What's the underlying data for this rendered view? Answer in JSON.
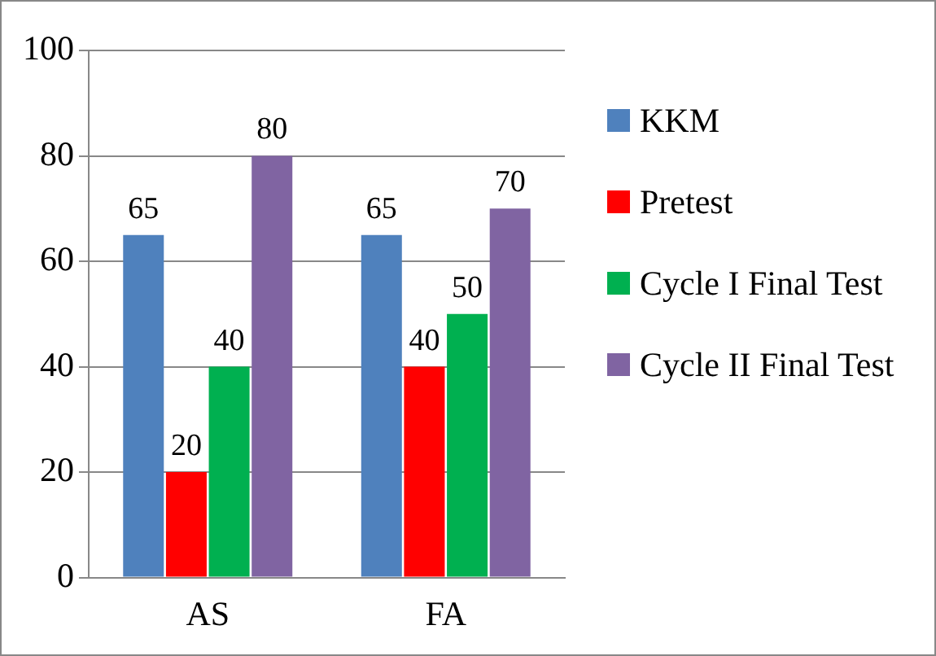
{
  "chart_data": {
    "type": "bar",
    "categories": [
      "AS",
      "FA"
    ],
    "series": [
      {
        "name": "KKM",
        "color": "#4f81bd",
        "values": [
          65,
          65
        ]
      },
      {
        "name": "Pretest",
        "color": "#ff0000",
        "values": [
          20,
          40
        ]
      },
      {
        "name": "Cycle I Final Test",
        "color": "#00b050",
        "values": [
          40,
          50
        ]
      },
      {
        "name": "Cycle II Final Test",
        "color": "#8064a2",
        "values": [
          80,
          70
        ]
      }
    ],
    "ylim": [
      0,
      100
    ],
    "yticks": [
      0,
      20,
      40,
      60,
      80,
      100
    ],
    "grid": "y",
    "legend": "right",
    "data_labels": true
  }
}
